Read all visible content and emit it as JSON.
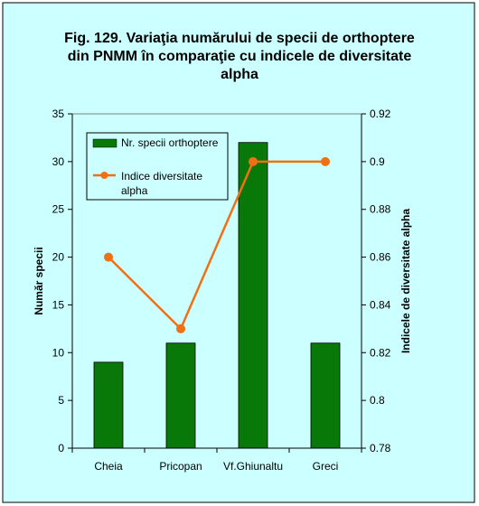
{
  "chart_data": {
    "type": "bar",
    "title_lines": [
      "Fig. 129.  Variaţia numărului de specii de orthoptere",
      "din PNMM în comparaţie cu indicele de diversitate",
      "alpha"
    ],
    "categories": [
      "Cheia",
      "Pricopan",
      "Vf.Ghiunaltu",
      "Greci"
    ],
    "y_left": {
      "label": "Număr specii",
      "ylim": [
        0,
        35
      ],
      "ticks": [
        "0",
        "5",
        "10",
        "15",
        "20",
        "25",
        "30",
        "35"
      ]
    },
    "y_right": {
      "label": "Indicele de diversitate alpha",
      "ylim": [
        0.78,
        0.92
      ],
      "ticks": [
        "0.78",
        "0.8",
        "0.82",
        "0.84",
        "0.86",
        "0.88",
        "0.9",
        "0.92"
      ]
    },
    "series": [
      {
        "name": "Nr. specii orthoptere",
        "type": "bar",
        "axis": "left",
        "color": "#087808",
        "values": [
          9,
          11,
          32,
          11
        ]
      },
      {
        "name_lines": [
          "Indice diversitate",
          "alpha"
        ],
        "type": "line",
        "axis": "right",
        "color": "#f26f12",
        "values": [
          0.86,
          0.83,
          0.9,
          0.9
        ]
      }
    ],
    "grid": false,
    "legend": "top-left",
    "colors": {
      "background": "#ccffff",
      "plot_background": "#ccffff"
    }
  }
}
